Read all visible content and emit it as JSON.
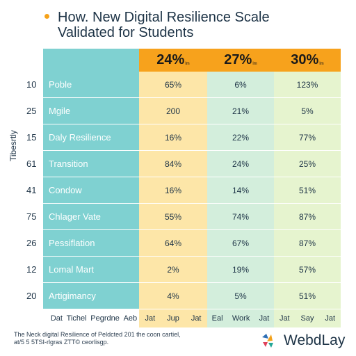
{
  "title_lines": [
    "How. New Digital Resilience Scale",
    "Validated for Students"
  ],
  "ylabel": "Tibesrtly",
  "header": [
    {
      "value": "24",
      "suffix": "%",
      "sub": "lm"
    },
    {
      "value": "27",
      "suffix": "%",
      "sub": "lm"
    },
    {
      "value": "30",
      "suffix": "%",
      "sub": "lm"
    }
  ],
  "rows": [
    {
      "num": "10",
      "label": "Poble",
      "v1": "65%",
      "v2": "6%",
      "v3": "123%"
    },
    {
      "num": "25",
      "label": "Mgile",
      "v1": "200",
      "v2": "21%",
      "v3": "5%"
    },
    {
      "num": "15",
      "label": "Daly Resilience",
      "v1": "16%",
      "v2": "22%",
      "v3": "77%"
    },
    {
      "num": "61",
      "label": "Transition",
      "v1": "84%",
      "v2": "24%",
      "v3": "25%"
    },
    {
      "num": "41",
      "label": "Condow",
      "v1": "16%",
      "v2": "14%",
      "v3": "51%"
    },
    {
      "num": "75",
      "label": "Chlager Vate",
      "v1": "55%",
      "v2": "74%",
      "v3": "87%"
    },
    {
      "num": "26",
      "label": "Pessiflation",
      "v1": "64%",
      "v2": "67%",
      "v3": "87%"
    },
    {
      "num": "12",
      "label": "Lomal Mart",
      "v1": "2%",
      "v2": "19%",
      "v3": "57%"
    },
    {
      "num": "20",
      "label": "Artigimancy",
      "v1": "4%",
      "v2": "5%",
      "v3": "51%"
    }
  ],
  "x_labels": [
    [
      "Dat",
      "Tichel",
      "Pegrdne",
      "Aeb"
    ],
    [
      "Jat",
      "Jup",
      "Jat"
    ],
    [
      "Eal",
      "Work",
      "Jat"
    ],
    [
      "Jat",
      "Say",
      "Jat"
    ]
  ],
  "footnote_lines": [
    "The Neck digital Resilience of Peldcted 201 the coon cartiel,",
    "at/5 5 5TSI-rlgras ZTT© ceorlisgp."
  ],
  "logo_text": "WebdLay",
  "colors": {
    "teal": "#7fd1d1",
    "header_orange": "#f7a21c",
    "col1": "#fde6a8",
    "col2": "#d3eedc",
    "col3": "#e6f4cf"
  },
  "chart_data": {
    "type": "table",
    "title": "How. New Digital Resilience Scale Validated for Students",
    "ylabel": "Tibesrtly",
    "columns": [
      "24%",
      "27%",
      "30%"
    ],
    "row_numbers": [
      "10",
      "25",
      "15",
      "61",
      "41",
      "75",
      "26",
      "12",
      "20"
    ],
    "row_labels": [
      "Poble",
      "Mgile",
      "Daly Resilience",
      "Transition",
      "Condow",
      "Chlager Vate",
      "Pessiflation",
      "Lomal Mart",
      "Artigimancy"
    ],
    "values": [
      [
        "65%",
        "6%",
        "123%"
      ],
      [
        "200",
        "21%",
        "5%"
      ],
      [
        "16%",
        "22%",
        "77%"
      ],
      [
        "84%",
        "24%",
        "25%"
      ],
      [
        "16%",
        "14%",
        "51%"
      ],
      [
        "55%",
        "74%",
        "87%"
      ],
      [
        "64%",
        "67%",
        "87%"
      ],
      [
        "2%",
        "19%",
        "57%"
      ],
      [
        "4%",
        "5%",
        "51%"
      ]
    ]
  }
}
